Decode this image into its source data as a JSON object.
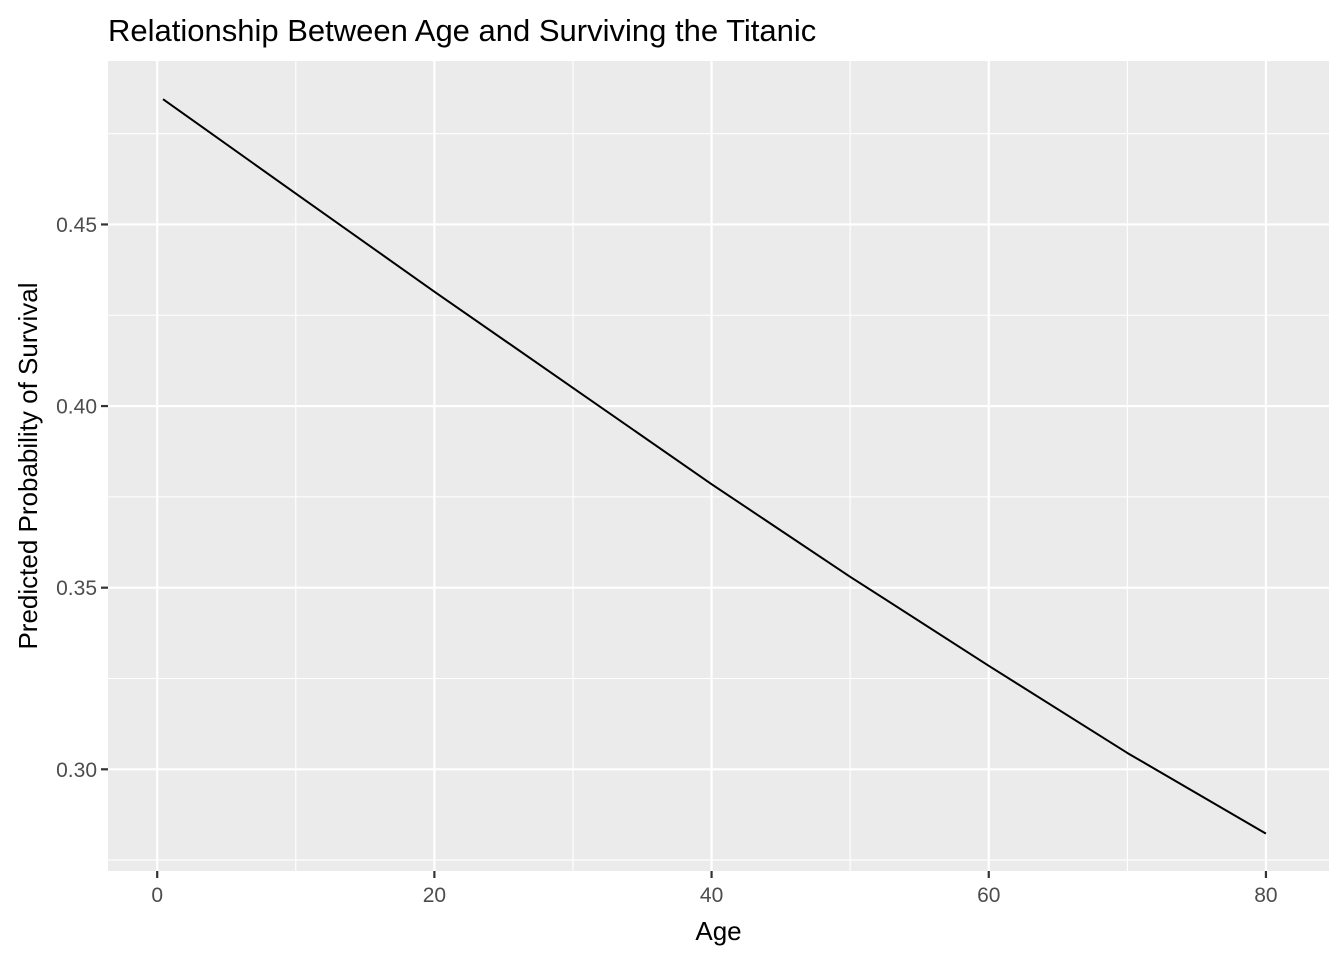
{
  "chart_data": {
    "type": "line",
    "title": "Relationship Between Age and Surviving the Titanic",
    "xlabel": "Age",
    "ylabel": "Predicted Probability of Survival",
    "xlim": [
      -3.55,
      84.55
    ],
    "ylim": [
      0.272,
      0.495
    ],
    "x_ticks": [
      0,
      20,
      40,
      60,
      80
    ],
    "x_tick_labels": [
      "0",
      "20",
      "40",
      "60",
      "80"
    ],
    "y_ticks": [
      0.3,
      0.35,
      0.4,
      0.45
    ],
    "y_tick_labels": [
      "0.30",
      "0.35",
      "0.40",
      "0.45"
    ],
    "x_minor_ticks": [
      10,
      30,
      50,
      70
    ],
    "y_minor_ticks": [
      0.275,
      0.325,
      0.375,
      0.425,
      0.475
    ],
    "grid": true,
    "legend": "none",
    "colors": {
      "panel": "#ebebeb",
      "grid": "#ffffff",
      "line": "#000000"
    },
    "series": [
      {
        "x": [
          0.42,
          10,
          20,
          30,
          40,
          50,
          60,
          70,
          80
        ],
        "y": [
          0.4845,
          0.4585,
          0.4315,
          0.405,
          0.3785,
          0.353,
          0.3285,
          0.3045,
          0.2823
        ]
      }
    ]
  }
}
